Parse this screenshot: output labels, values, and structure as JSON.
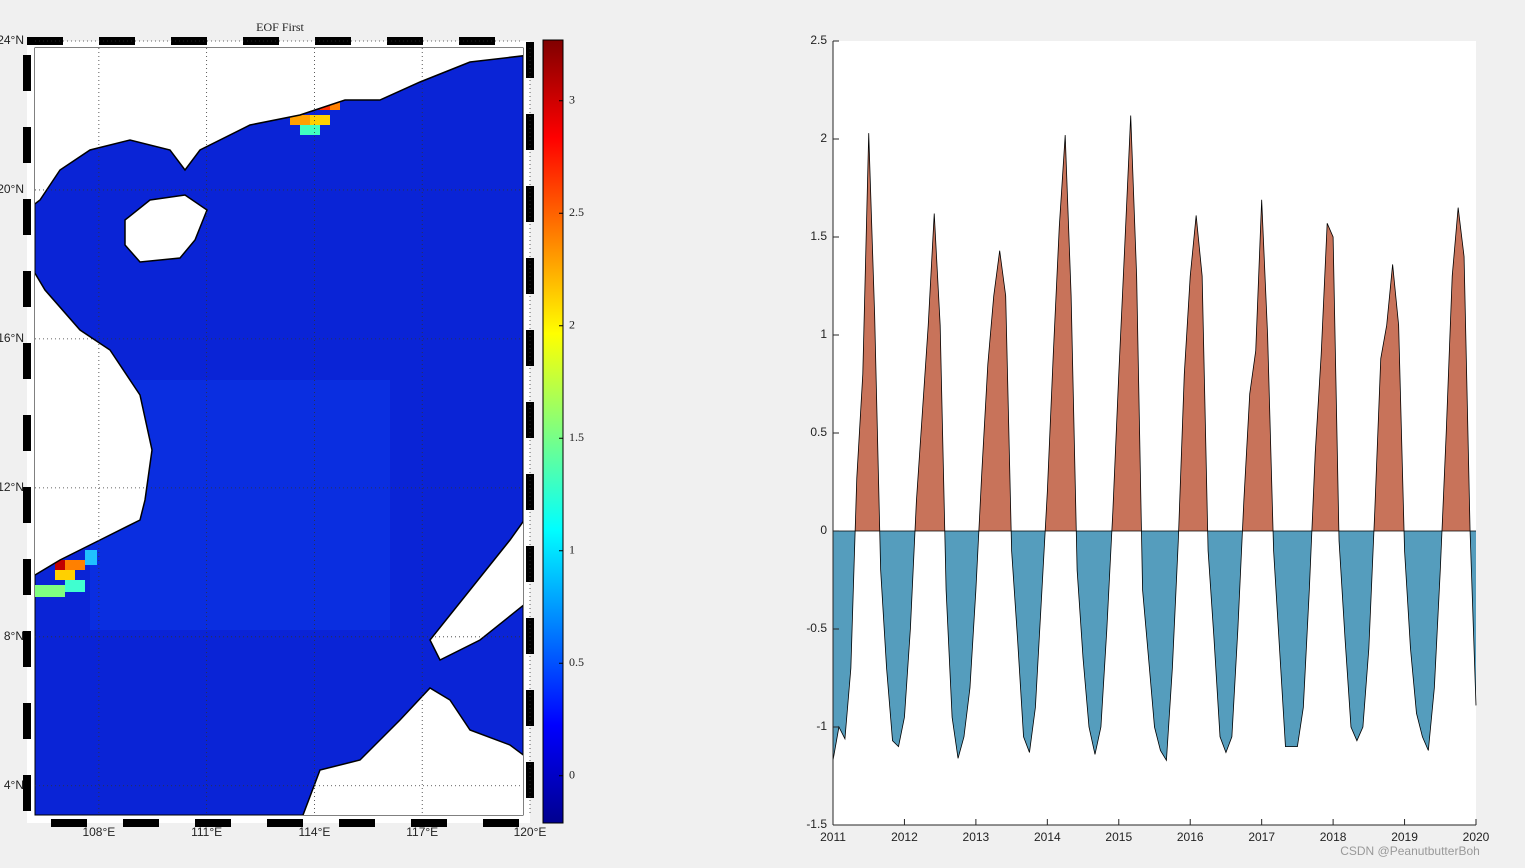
{
  "chart_data": [
    {
      "type": "map",
      "title": "EOF First",
      "xlim": [
        106,
        120
      ],
      "ylim": [
        3,
        24
      ],
      "xticks": [
        {
          "value": 108,
          "label": "108°E"
        },
        {
          "value": 111,
          "label": "111°E"
        },
        {
          "value": 114,
          "label": "114°E"
        },
        {
          "value": 117,
          "label": "117°E"
        },
        {
          "value": 120,
          "label": "120°E"
        }
      ],
      "yticks": [
        {
          "value": 4,
          "label": "4°N"
        },
        {
          "value": 8,
          "label": "8°N"
        },
        {
          "value": 12,
          "label": "12°N"
        },
        {
          "value": 16,
          "label": "16°N"
        },
        {
          "value": 20,
          "label": "20°N"
        },
        {
          "value": 24,
          "label": "24°N"
        }
      ],
      "grid": true,
      "colorbar": {
        "clim": [
          -0.21,
          3.27
        ],
        "ticks": [
          0,
          0.5,
          1,
          1.5,
          2,
          2.5,
          3
        ],
        "colormap": "jet"
      }
    },
    {
      "type": "area",
      "positive_color": "#c8735a",
      "negative_color": "#559dbd",
      "line_color": "#000000",
      "xlim": [
        2011,
        2020
      ],
      "ylim": [
        -1.5,
        2.5
      ],
      "xticks": [
        2011,
        2012,
        2013,
        2014,
        2015,
        2016,
        2017,
        2018,
        2019,
        2020
      ],
      "yticks": [
        -1.5,
        -1,
        -0.5,
        0,
        0.5,
        1,
        1.5,
        2,
        2.5
      ],
      "x": [
        2011,
        2011.083,
        2011.167,
        2011.25,
        2011.333,
        2011.417,
        2011.5,
        2011.583,
        2011.667,
        2011.75,
        2011.833,
        2011.917,
        2012,
        2012.083,
        2012.167,
        2012.25,
        2012.333,
        2012.417,
        2012.5,
        2012.583,
        2012.667,
        2012.75,
        2012.833,
        2012.917,
        2013,
        2013.083,
        2013.167,
        2013.25,
        2013.333,
        2013.417,
        2013.5,
        2013.583,
        2013.667,
        2013.75,
        2013.833,
        2013.917,
        2014,
        2014.083,
        2014.167,
        2014.25,
        2014.333,
        2014.417,
        2014.5,
        2014.583,
        2014.667,
        2014.75,
        2014.833,
        2014.917,
        2015,
        2015.083,
        2015.167,
        2015.25,
        2015.333,
        2015.417,
        2015.5,
        2015.583,
        2015.667,
        2015.75,
        2015.833,
        2015.917,
        2016,
        2016.083,
        2016.167,
        2016.25,
        2016.333,
        2016.417,
        2016.5,
        2016.583,
        2016.667,
        2016.75,
        2016.833,
        2016.917,
        2017,
        2017.083,
        2017.167,
        2017.25,
        2017.333,
        2017.417,
        2017.5,
        2017.583,
        2017.667,
        2017.75,
        2017.833,
        2017.917,
        2018,
        2018.083,
        2018.167,
        2018.25,
        2018.333,
        2018.417,
        2018.5,
        2018.583,
        2018.667,
        2018.75,
        2018.833,
        2018.917,
        2019,
        2019.083,
        2019.167,
        2019.25,
        2019.333,
        2019.417,
        2019.5,
        2019.583,
        2019.667,
        2019.75,
        2019.833,
        2019.917,
        2020
      ],
      "values": [
        -1.17,
        -1.0,
        -1.06,
        -0.7,
        0.27,
        0.8,
        2.03,
        1.1,
        -0.2,
        -0.7,
        -1.07,
        -1.1,
        -0.95,
        -0.5,
        0.15,
        0.6,
        1.05,
        1.62,
        1.05,
        -0.3,
        -0.95,
        -1.16,
        -1.05,
        -0.8,
        -0.3,
        0.3,
        0.85,
        1.2,
        1.43,
        1.2,
        -0.1,
        -0.55,
        -1.05,
        -1.13,
        -0.9,
        -0.35,
        0.2,
        0.9,
        1.55,
        2.02,
        1.2,
        -0.2,
        -0.65,
        -1.0,
        -1.14,
        -1.0,
        -0.5,
        0.1,
        0.8,
        1.45,
        2.12,
        1.3,
        -0.3,
        -0.65,
        -1.0,
        -1.12,
        -1.17,
        -0.7,
        -0.05,
        0.8,
        1.3,
        1.61,
        1.3,
        -0.1,
        -0.55,
        -1.05,
        -1.13,
        -1.05,
        -0.5,
        0.15,
        0.7,
        0.92,
        1.69,
        1.0,
        -0.1,
        -0.6,
        -1.1,
        -1.1,
        -1.1,
        -0.9,
        -0.3,
        0.4,
        0.9,
        1.57,
        1.5,
        -0.05,
        -0.55,
        -1.0,
        -1.07,
        -1.0,
        -0.6,
        0.1,
        0.88,
        1.05,
        1.36,
        1.05,
        -0.1,
        -0.6,
        -0.93,
        -1.05,
        -1.12,
        -0.8,
        -0.2,
        0.5,
        1.3,
        1.65,
        1.4,
        0.0,
        -0.89
      ],
      "watermark": "CSDN @PeanutbutterBoh"
    }
  ]
}
